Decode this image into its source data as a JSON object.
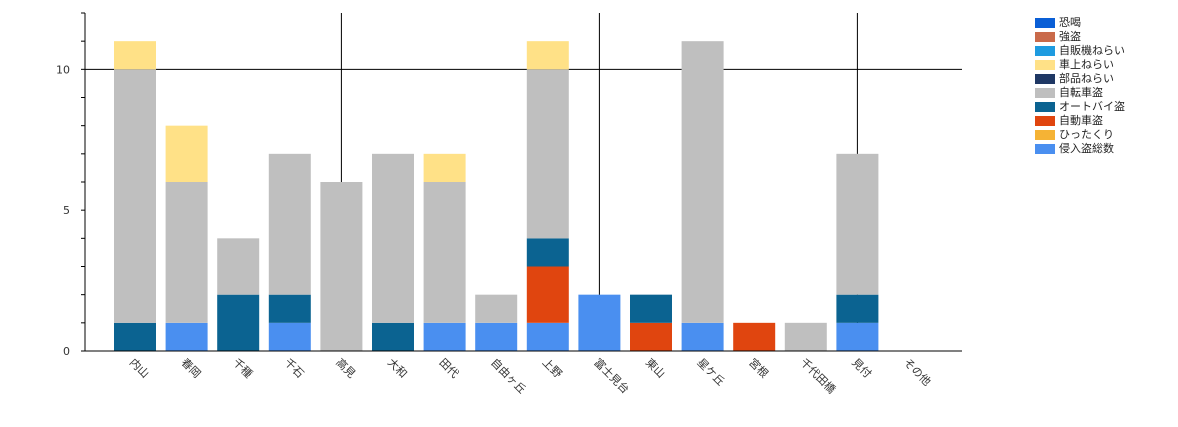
{
  "chart_data": {
    "type": "bar",
    "stacked": true,
    "categories": [
      "内山",
      "春岡",
      "千種",
      "千石",
      "高見",
      "大和",
      "田代",
      "自由ヶ丘",
      "上野",
      "富士見台",
      "東山",
      "星ケ丘",
      "宮根",
      "千代田橋",
      "見付",
      "その他"
    ],
    "series": [
      {
        "name": "恐喝",
        "color": "#0a5fd6",
        "values": [
          0,
          0,
          0,
          0,
          0,
          0,
          0,
          0,
          0,
          0,
          0,
          0,
          0,
          0,
          0,
          0
        ]
      },
      {
        "name": "強盗",
        "color": "#c96a4a",
        "values": [
          0,
          0,
          0,
          0,
          0,
          0,
          0,
          0,
          0,
          0,
          0,
          0,
          0,
          0,
          0,
          0
        ]
      },
      {
        "name": "自販機ねらい",
        "color": "#1e9be0",
        "values": [
          0,
          0,
          0,
          0,
          0,
          0,
          0,
          0,
          0,
          0,
          0,
          0,
          0,
          0,
          0,
          0
        ]
      },
      {
        "name": "車上ねらい",
        "color": "#ffe187",
        "values": [
          1,
          2,
          0,
          0,
          0,
          0,
          1,
          0,
          1,
          0,
          0,
          0,
          0,
          0,
          0,
          0
        ]
      },
      {
        "name": "部品ねらい",
        "color": "#1f3864",
        "values": [
          0,
          0,
          0,
          0,
          0,
          0,
          0,
          0,
          0,
          0,
          0,
          0,
          0,
          0,
          0,
          0
        ]
      },
      {
        "name": "自転車盗",
        "color": "#bfbfbf",
        "values": [
          9,
          5,
          2,
          5,
          6,
          6,
          5,
          1,
          6,
          0,
          0,
          10,
          0,
          1,
          5,
          0
        ]
      },
      {
        "name": "オートバイ盗",
        "color": "#0b6391",
        "values": [
          1,
          0,
          2,
          1,
          0,
          1,
          0,
          0,
          1,
          0,
          1,
          0,
          0,
          0,
          1,
          0
        ]
      },
      {
        "name": "自動車盗",
        "color": "#e0450f",
        "values": [
          0,
          0,
          0,
          0,
          0,
          0,
          0,
          0,
          2,
          0,
          1,
          0,
          1,
          0,
          0,
          0
        ]
      },
      {
        "name": "ひったくり",
        "color": "#f5b335",
        "values": [
          0,
          0,
          0,
          0,
          0,
          0,
          0,
          0,
          0,
          0,
          0,
          0,
          0,
          0,
          0,
          0
        ]
      },
      {
        "name": "侵入盗総数",
        "color": "#4a8ff0",
        "values": [
          0,
          1,
          0,
          1,
          0,
          0,
          1,
          1,
          1,
          2,
          0,
          1,
          0,
          0,
          1,
          0
        ]
      }
    ],
    "stack_order": [
      "侵入盗総数",
      "自動車盗",
      "オートバイ盗",
      "自転車盗",
      "車上ねらい"
    ],
    "yticks": [
      0,
      5,
      10
    ],
    "ylim": [
      0,
      12
    ],
    "gridlines": {
      "y": [
        10
      ],
      "x_after_categories": [
        "高見",
        "富士見台",
        "見付"
      ]
    },
    "legend_position": "top-right"
  }
}
